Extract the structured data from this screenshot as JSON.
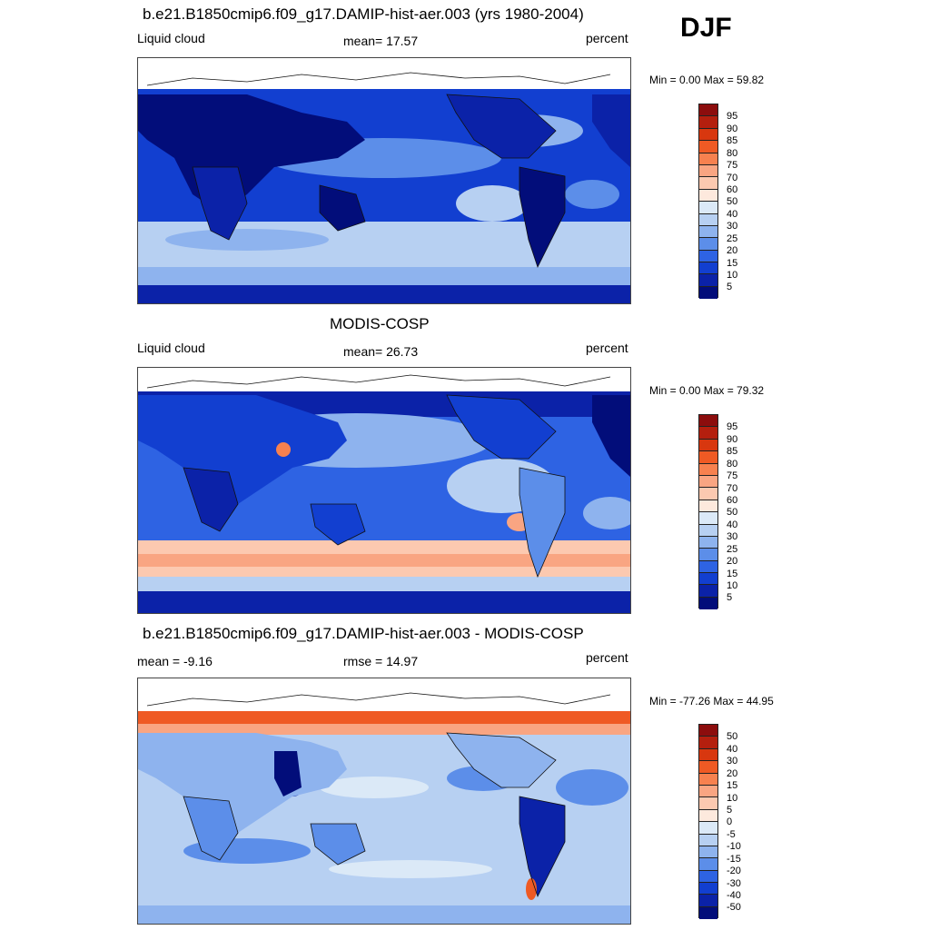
{
  "season": "DJF",
  "panels": [
    {
      "title": "b.e21.B1850cmip6.f09_g17.DAMIP-hist-aer.003 (yrs 1980-2004)",
      "left": "Liquid cloud",
      "center": "mean=  17.57",
      "right": "percent",
      "minmax": "Min =   0.00 Max =  59.82",
      "colorbar_labels": [
        "95",
        "90",
        "85",
        "80",
        "75",
        "70",
        "60",
        "50",
        "40",
        "30",
        "25",
        "20",
        "15",
        "10",
        "5"
      ]
    },
    {
      "title": "MODIS-COSP",
      "left": "Liquid cloud",
      "center": "mean=  26.73",
      "right": "percent",
      "minmax": "Min =   0.00 Max =  79.32",
      "colorbar_labels": [
        "95",
        "90",
        "85",
        "80",
        "75",
        "70",
        "60",
        "50",
        "40",
        "30",
        "25",
        "20",
        "15",
        "10",
        "5"
      ]
    },
    {
      "title": "b.e21.B1850cmip6.f09_g17.DAMIP-hist-aer.003 - MODIS-COSP",
      "left": "mean =  -9.16",
      "center": "rmse =  14.97",
      "right": "percent",
      "minmax": "Min = -77.26 Max =  44.95",
      "colorbar_labels": [
        "50",
        "40",
        "30",
        "20",
        "15",
        "10",
        "5",
        "0",
        "-5",
        "-10",
        "-15",
        "-20",
        "-30",
        "-40",
        "-50"
      ]
    }
  ],
  "colors": {
    "scale": [
      "#8c0d0d",
      "#b41f0e",
      "#d8370f",
      "#ef5a24",
      "#f7814f",
      "#f9a582",
      "#fcc9b0",
      "#fde9dd",
      "#dbe9f7",
      "#b7d0f2",
      "#8eb3ee",
      "#5c8ee9",
      "#2e63e3",
      "#123fd0",
      "#0b22a8",
      "#020d7a"
    ],
    "land_outline": "#111111"
  }
}
